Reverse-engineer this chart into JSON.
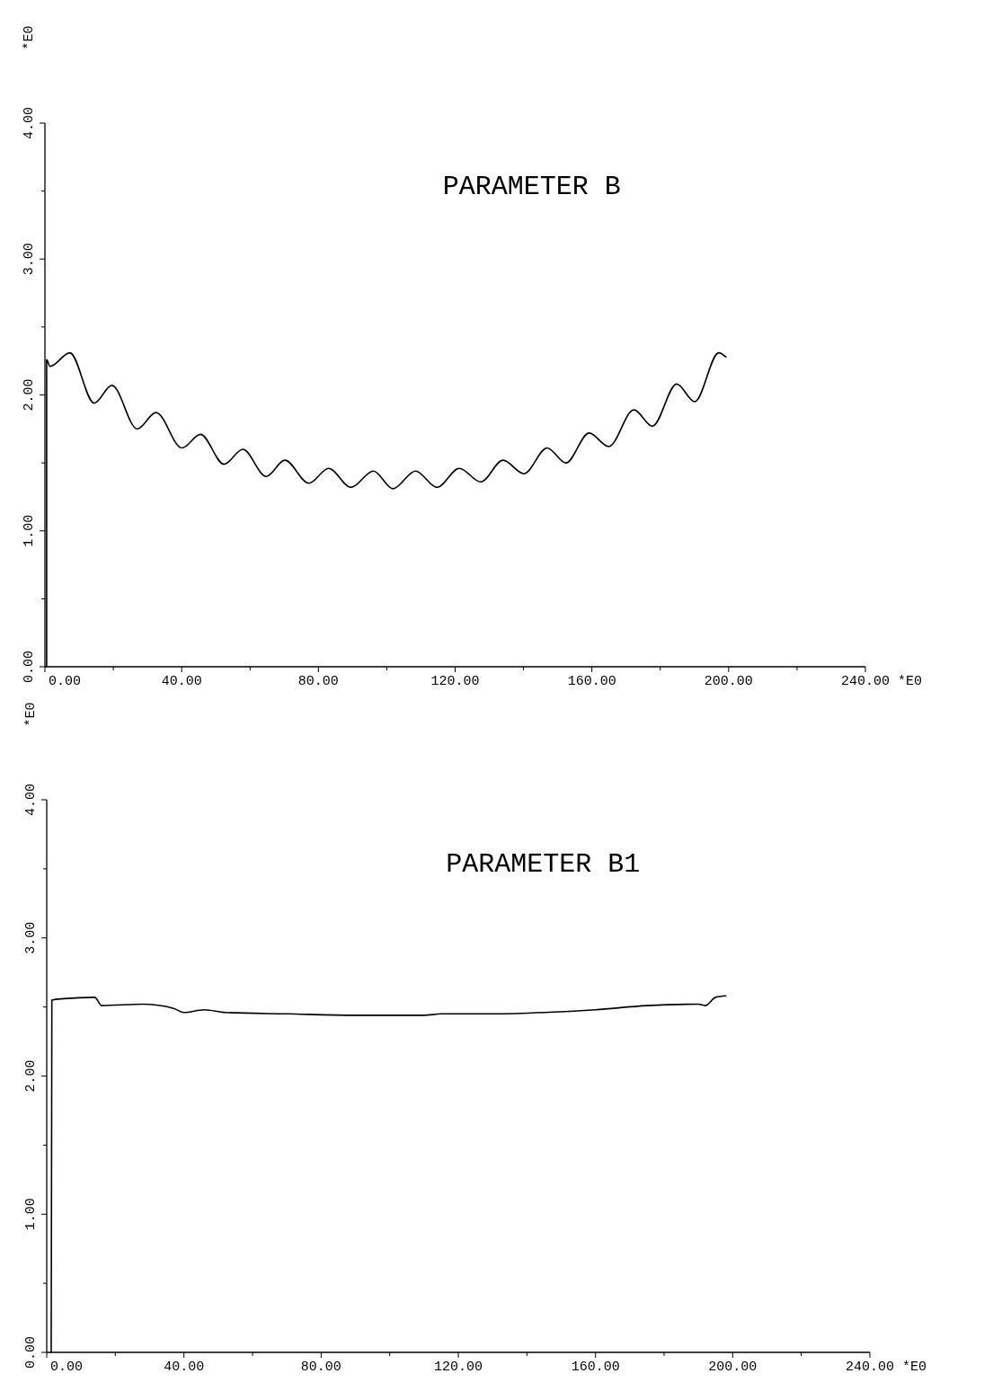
{
  "chart_data": [
    {
      "type": "line",
      "title": "PARAMETER B",
      "xlabel": "*E0",
      "ylabel": "*E0",
      "xlim": [
        0,
        240
      ],
      "ylim": [
        0,
        4
      ],
      "xticks": [
        {
          "value": 0,
          "label": "0.00"
        },
        {
          "value": 20,
          "label": null
        },
        {
          "value": 40,
          "label": "40.00"
        },
        {
          "value": 60,
          "label": null
        },
        {
          "value": 80,
          "label": "80.00"
        },
        {
          "value": 100,
          "label": null
        },
        {
          "value": 120,
          "label": "120.00"
        },
        {
          "value": 140,
          "label": null
        },
        {
          "value": 160,
          "label": "160.00"
        },
        {
          "value": 180,
          "label": null
        },
        {
          "value": 200,
          "label": "200.00"
        },
        {
          "value": 220,
          "label": null
        },
        {
          "value": 240,
          "label": "240.00"
        }
      ],
      "yticks": [
        {
          "value": 0,
          "label": "0.00"
        },
        {
          "value": 0.5,
          "label": null
        },
        {
          "value": 1,
          "label": "1.00"
        },
        {
          "value": 1.5,
          "label": null
        },
        {
          "value": 2,
          "label": "2.00"
        },
        {
          "value": 2.5,
          "label": null
        },
        {
          "value": 3,
          "label": "3.00"
        },
        {
          "value": 3.5,
          "label": null
        },
        {
          "value": 4,
          "label": "4.00"
        }
      ],
      "series": [
        {
          "color": "#000000",
          "x": [
            0.5,
            0.5,
            1.5,
            7.3,
            14.4,
            19.6,
            27.0,
            32.5,
            40.1,
            45.5,
            52.4,
            57.9,
            64.7,
            70.2,
            77.2,
            83.0,
            89.5,
            96.1,
            101.8,
            108.4,
            114.7,
            121.2,
            127.5,
            134.0,
            140.1,
            146.9,
            152.4,
            159.2,
            164.9,
            172.3,
            177.7,
            184.8,
            190.1,
            197.1,
            199.2
          ],
          "values": [
            0,
            2.26,
            2.21,
            2.31,
            1.94,
            2.07,
            1.75,
            1.87,
            1.61,
            1.71,
            1.49,
            1.6,
            1.4,
            1.52,
            1.35,
            1.46,
            1.32,
            1.44,
            1.31,
            1.44,
            1.32,
            1.46,
            1.36,
            1.52,
            1.42,
            1.61,
            1.5,
            1.72,
            1.62,
            1.89,
            1.77,
            2.08,
            1.95,
            2.31,
            2.28
          ]
        }
      ]
    },
    {
      "type": "line",
      "title": "PARAMETER B1",
      "xlabel": "*E0",
      "ylabel": "*E0",
      "xlim": [
        0,
        240
      ],
      "ylim": [
        0,
        4
      ],
      "xticks": [
        {
          "value": 0,
          "label": "0.00"
        },
        {
          "value": 20,
          "label": null
        },
        {
          "value": 40,
          "label": "40.00"
        },
        {
          "value": 60,
          "label": null
        },
        {
          "value": 80,
          "label": "80.00"
        },
        {
          "value": 100,
          "label": null
        },
        {
          "value": 120,
          "label": "120.00"
        },
        {
          "value": 140,
          "label": null
        },
        {
          "value": 160,
          "label": "160.00"
        },
        {
          "value": 180,
          "label": null
        },
        {
          "value": 200,
          "label": "200.00"
        },
        {
          "value": 220,
          "label": null
        },
        {
          "value": 240,
          "label": "240.00"
        }
      ],
      "yticks": [
        {
          "value": 0,
          "label": "0.00"
        },
        {
          "value": 0.5,
          "label": null
        },
        {
          "value": 1,
          "label": "1.00"
        },
        {
          "value": 1.5,
          "label": null
        },
        {
          "value": 2,
          "label": "2.00"
        },
        {
          "value": 2.5,
          "label": null
        },
        {
          "value": 3,
          "label": "3.00"
        },
        {
          "value": 3.5,
          "label": null
        },
        {
          "value": 4,
          "label": "4.00"
        }
      ],
      "series": [
        {
          "color": "#000000",
          "x": [
            1.3,
            1.5,
            5,
            14,
            16,
            28,
            37,
            40,
            46,
            52,
            70,
            90,
            110,
            115,
            130,
            145,
            160,
            175,
            190,
            192,
            195,
            198
          ],
          "values": [
            0,
            2.55,
            2.56,
            2.57,
            2.51,
            2.52,
            2.49,
            2.46,
            2.48,
            2.46,
            2.45,
            2.44,
            2.44,
            2.45,
            2.45,
            2.46,
            2.48,
            2.51,
            2.52,
            2.51,
            2.57,
            2.58
          ]
        }
      ]
    }
  ]
}
